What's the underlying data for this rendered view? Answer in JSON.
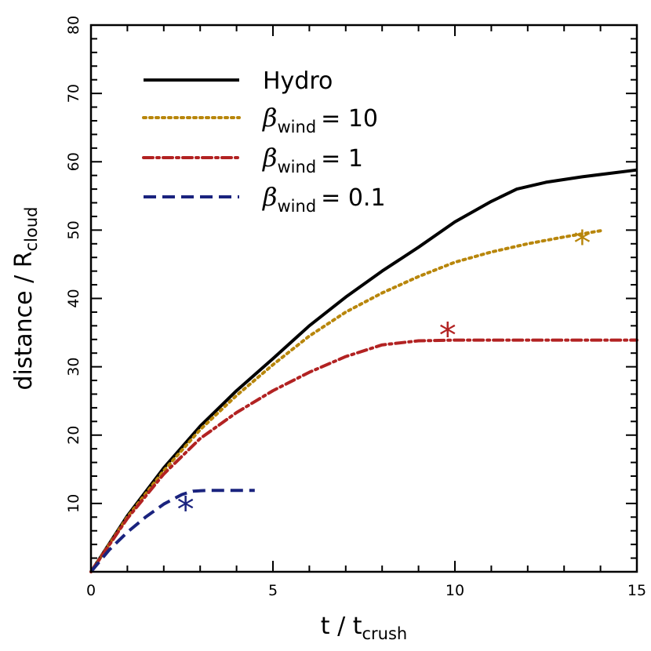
{
  "chart_data": {
    "type": "line",
    "title": "",
    "xlabel": "t / t",
    "xlabel_sub": "crush",
    "ylabel": "distance / R",
    "ylabel_sub": "cloud",
    "xlim": [
      0,
      15
    ],
    "ylim": [
      0,
      80
    ],
    "xticks": [
      0,
      5,
      10,
      15
    ],
    "yticks": [
      10,
      20,
      30,
      40,
      50,
      60,
      70,
      80
    ],
    "grid": false,
    "legend_placement": "top-left",
    "series": [
      {
        "name": "Hydro",
        "legend_prefix": "",
        "legend_sub": "",
        "legend_value": "",
        "color": "#000000",
        "style": "solid",
        "x": [
          0,
          1,
          2,
          3,
          4,
          5,
          6,
          7,
          8,
          9,
          10,
          11,
          11.7,
          12.5,
          13.5,
          15
        ],
        "y": [
          0,
          8.2,
          15.2,
          21.3,
          26.5,
          31.2,
          36.0,
          40.2,
          44.0,
          47.5,
          51.2,
          54.2,
          56.0,
          57.0,
          57.8,
          58.8
        ]
      },
      {
        "name": "",
        "legend_prefix": "β",
        "legend_sub": "wind",
        "legend_value": "= 10",
        "color": "#b8860b",
        "style": "dotted",
        "x": [
          0,
          1,
          2,
          3,
          4,
          5,
          6,
          7,
          8,
          9,
          10,
          11,
          12,
          13,
          14
        ],
        "y": [
          0,
          8.0,
          14.8,
          20.8,
          25.8,
          30.3,
          34.5,
          38.0,
          40.8,
          43.2,
          45.3,
          46.8,
          48.0,
          49.0,
          49.9
        ]
      },
      {
        "name": "",
        "legend_prefix": "β",
        "legend_sub": "wind",
        "legend_value": "= 1",
        "color": "#b22222",
        "style": "dashdot",
        "x": [
          0,
          1,
          2,
          3,
          4,
          5,
          6,
          7,
          8,
          9,
          10,
          12,
          15
        ],
        "y": [
          0,
          7.8,
          14.3,
          19.5,
          23.3,
          26.5,
          29.2,
          31.5,
          33.2,
          33.8,
          33.9,
          33.9,
          33.9
        ]
      },
      {
        "name": "",
        "legend_prefix": "β",
        "legend_sub": "wind",
        "legend_value": "= 0.1",
        "color": "#1a237e",
        "style": "dashed",
        "x": [
          0,
          0.5,
          1,
          1.5,
          2,
          2.5,
          2.8,
          3.2,
          4.5
        ],
        "y": [
          0,
          3.2,
          5.8,
          8.0,
          9.9,
          11.3,
          11.8,
          11.9,
          11.9
        ]
      }
    ],
    "markers": [
      {
        "symbol": "*",
        "x": 13.5,
        "y": 48.0,
        "color": "#b8860b"
      },
      {
        "symbol": "*",
        "x": 9.8,
        "y": 34.5,
        "color": "#b22222"
      },
      {
        "symbol": "*",
        "x": 2.6,
        "y": 9.0,
        "color": "#1a237e"
      }
    ]
  }
}
